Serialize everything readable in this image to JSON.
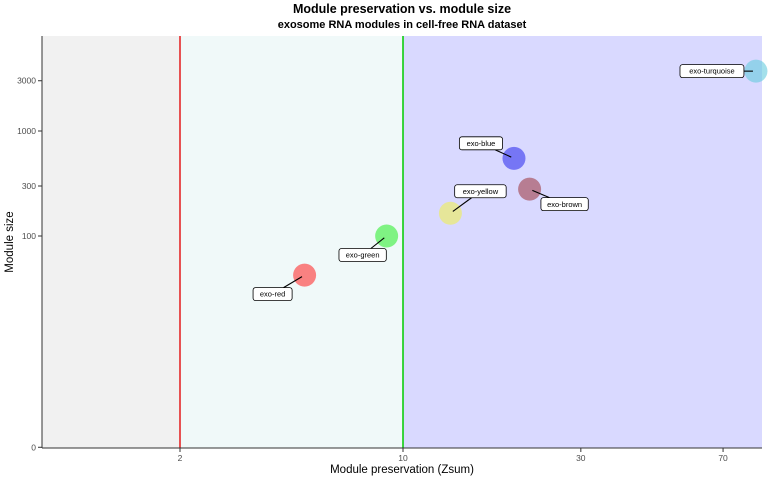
{
  "chart_data": {
    "type": "scatter",
    "title": "Module preservation vs. module size",
    "subtitle": "exosome RNA modules in cell-free RNA dataset",
    "xlabel": "Module preservation (Zsum)",
    "ylabel": "Module size",
    "x_scale": "pseudo-log",
    "y_scale": "pseudo-log",
    "xlim": [
      0,
      95
    ],
    "ylim": [
      0,
      7000
    ],
    "x_ticks": [
      "0",
      "2",
      "10",
      "30",
      "70"
    ],
    "y_ticks": [
      "0",
      "100",
      "300",
      "1000",
      "3000"
    ],
    "grid": false,
    "thresholds": [
      {
        "value": 2,
        "color": "#e41a1c"
      },
      {
        "value": 10,
        "color": "#00cc00"
      }
    ],
    "zones": [
      {
        "from": 0,
        "to": 2,
        "color": "#f1f1f1"
      },
      {
        "from": 2,
        "to": 10,
        "color": "#f0f9f9"
      },
      {
        "from": 10,
        "to": 95,
        "color": "#d9d9ff"
      }
    ],
    "points": [
      {
        "label": "exo-red",
        "x": 5.2,
        "y": 42,
        "color": "#ff3030"
      },
      {
        "label": "exo-green",
        "x": 9.0,
        "y": 100,
        "color": "#33ee33"
      },
      {
        "label": "exo-yellow",
        "x": 13.5,
        "y": 165,
        "color": "#eeee55"
      },
      {
        "label": "exo-blue",
        "x": 20,
        "y": 550,
        "color": "#3333ee"
      },
      {
        "label": "exo-brown",
        "x": 22,
        "y": 280,
        "color": "#a0404a"
      },
      {
        "label": "exo-turquoise",
        "x": 85,
        "y": 3700,
        "color": "#66ccdd"
      }
    ]
  }
}
